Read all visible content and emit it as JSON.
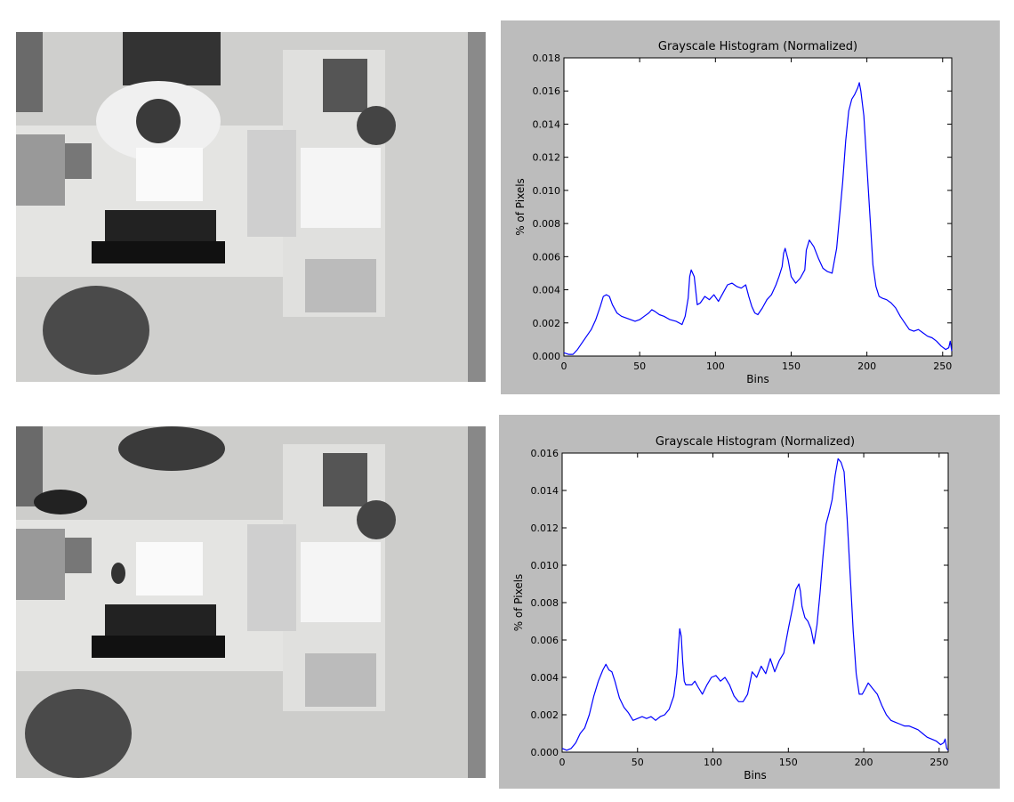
{
  "colors": {
    "line": "#0000ff",
    "panel_background": "#bcbcbc",
    "plot_background": "#ffffff",
    "axes": "#000000"
  },
  "photos": [
    {
      "scene": "top-down view of office desk with seated person"
    },
    {
      "scene": "top-down view of the same office desk, chair empty"
    }
  ],
  "chart_data": [
    {
      "type": "line",
      "title": "Grayscale Histogram (Normalized)",
      "xlabel": "Bins",
      "ylabel": "% of Pixels",
      "xlim": [
        0,
        256
      ],
      "ylim": [
        0,
        0.018
      ],
      "xticks": [
        "0",
        "50",
        "100",
        "150",
        "200",
        "250"
      ],
      "yticks": [
        "0.000",
        "0.002",
        "0.004",
        "0.006",
        "0.008",
        "0.010",
        "0.012",
        "0.014",
        "0.016",
        "0.018"
      ],
      "grid": false,
      "series": [
        {
          "x": [
            0,
            3,
            6,
            9,
            12,
            15,
            18,
            21,
            24,
            26,
            28,
            30,
            32,
            35,
            38,
            41,
            44,
            47,
            50,
            53,
            56,
            58,
            60,
            63,
            66,
            70,
            74,
            78,
            80,
            82,
            83,
            84,
            86,
            88,
            90,
            93,
            96,
            99,
            102,
            105,
            108,
            111,
            114,
            117,
            120,
            122,
            124,
            126,
            128,
            131,
            134,
            137,
            140,
            142,
            144,
            145,
            146,
            148,
            150,
            153,
            156,
            159,
            160,
            162,
            165,
            168,
            171,
            174,
            177,
            180,
            182,
            184,
            186,
            188,
            190,
            192,
            194,
            195,
            196,
            198,
            200,
            202,
            204,
            206,
            208,
            210,
            213,
            216,
            219,
            222,
            225,
            228,
            231,
            234,
            237,
            240,
            243,
            246,
            249,
            252,
            254,
            255,
            256
          ],
          "y": [
            0.0002,
            0.0001,
            0.0001,
            0.0004,
            0.0008,
            0.0012,
            0.0016,
            0.0022,
            0.003,
            0.0036,
            0.0037,
            0.0036,
            0.0031,
            0.0026,
            0.0024,
            0.0023,
            0.0022,
            0.0021,
            0.0022,
            0.0024,
            0.0026,
            0.0028,
            0.0027,
            0.0025,
            0.0024,
            0.0022,
            0.0021,
            0.0019,
            0.0024,
            0.0035,
            0.0048,
            0.0052,
            0.0048,
            0.0031,
            0.0032,
            0.0036,
            0.0034,
            0.0037,
            0.0033,
            0.0038,
            0.0043,
            0.0044,
            0.0042,
            0.0041,
            0.0043,
            0.0036,
            0.003,
            0.0026,
            0.0025,
            0.0029,
            0.0034,
            0.0037,
            0.0043,
            0.0048,
            0.0054,
            0.0062,
            0.0065,
            0.0058,
            0.0048,
            0.0044,
            0.0047,
            0.0052,
            0.0064,
            0.007,
            0.0066,
            0.0059,
            0.0053,
            0.0051,
            0.005,
            0.0065,
            0.0085,
            0.0105,
            0.013,
            0.0148,
            0.0155,
            0.0158,
            0.0162,
            0.0165,
            0.016,
            0.0145,
            0.0115,
            0.0085,
            0.0055,
            0.0042,
            0.0036,
            0.0035,
            0.0034,
            0.0032,
            0.0029,
            0.0024,
            0.002,
            0.0016,
            0.0015,
            0.0016,
            0.0014,
            0.0012,
            0.0011,
            0.0009,
            0.0006,
            0.0004,
            0.0005,
            0.0009,
            0.0003
          ]
        }
      ]
    },
    {
      "type": "line",
      "title": "Grayscale Histogram (Normalized)",
      "xlabel": "Bins",
      "ylabel": "% of Pixels",
      "xlim": [
        0,
        256
      ],
      "ylim": [
        0,
        0.016
      ],
      "xticks": [
        "0",
        "50",
        "100",
        "150",
        "200",
        "250"
      ],
      "yticks": [
        "0.000",
        "0.002",
        "0.004",
        "0.006",
        "0.008",
        "0.010",
        "0.012",
        "0.014",
        "0.016"
      ],
      "grid": false,
      "series": [
        {
          "x": [
            0,
            3,
            6,
            9,
            12,
            15,
            18,
            21,
            24,
            27,
            29,
            31,
            33,
            35,
            38,
            41,
            44,
            47,
            50,
            53,
            56,
            59,
            62,
            65,
            68,
            71,
            74,
            76,
            77,
            78,
            79,
            80,
            81,
            82,
            84,
            86,
            88,
            90,
            93,
            96,
            99,
            102,
            105,
            108,
            111,
            114,
            117,
            120,
            123,
            126,
            129,
            132,
            135,
            138,
            141,
            144,
            147,
            150,
            153,
            155,
            157,
            158,
            159,
            161,
            163,
            165,
            167,
            169,
            171,
            173,
            175,
            177,
            179,
            181,
            183,
            185,
            187,
            189,
            191,
            193,
            195,
            197,
            199,
            201,
            203,
            205,
            207,
            209,
            212,
            215,
            218,
            221,
            224,
            227,
            230,
            233,
            236,
            239,
            242,
            245,
            248,
            251,
            253,
            254,
            255,
            256
          ],
          "y": [
            0.0002,
            0.0001,
            0.0002,
            0.0005,
            0.001,
            0.0013,
            0.002,
            0.003,
            0.0038,
            0.0044,
            0.0047,
            0.0044,
            0.0043,
            0.0038,
            0.0029,
            0.0024,
            0.0021,
            0.0017,
            0.0018,
            0.0019,
            0.0018,
            0.0019,
            0.0017,
            0.0019,
            0.002,
            0.0023,
            0.003,
            0.0042,
            0.0055,
            0.0066,
            0.0062,
            0.0048,
            0.0038,
            0.0036,
            0.0036,
            0.0036,
            0.0038,
            0.0035,
            0.0031,
            0.0036,
            0.004,
            0.0041,
            0.0038,
            0.004,
            0.0036,
            0.003,
            0.0027,
            0.0027,
            0.0031,
            0.0043,
            0.004,
            0.0046,
            0.0042,
            0.005,
            0.0043,
            0.0049,
            0.0053,
            0.0066,
            0.0078,
            0.0087,
            0.009,
            0.0086,
            0.0078,
            0.0072,
            0.007,
            0.0066,
            0.0058,
            0.0068,
            0.0085,
            0.0105,
            0.0122,
            0.0128,
            0.0135,
            0.0148,
            0.0157,
            0.0155,
            0.015,
            0.0125,
            0.0095,
            0.0065,
            0.0042,
            0.0031,
            0.0031,
            0.0034,
            0.0037,
            0.0035,
            0.0033,
            0.0031,
            0.0025,
            0.002,
            0.0017,
            0.0016,
            0.0015,
            0.0014,
            0.0014,
            0.0013,
            0.0012,
            0.001,
            0.0008,
            0.0007,
            0.0006,
            0.0004,
            0.0005,
            0.0007,
            0.0002,
            0.0001
          ]
        }
      ]
    }
  ]
}
